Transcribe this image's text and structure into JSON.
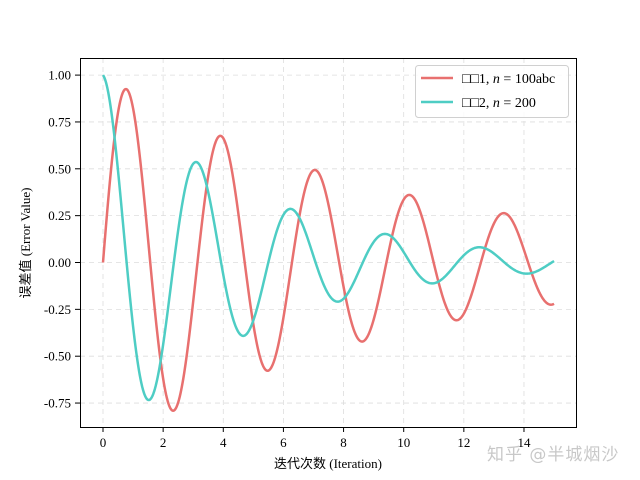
{
  "chart_data": {
    "type": "line",
    "title": "",
    "xlabel": "迭代次数 (Iteration)",
    "ylabel": "误差值 (Error Value)",
    "xlim": [
      -0.75,
      15.75
    ],
    "ylim": [
      -0.88,
      1.1
    ],
    "x_ticks": [
      0,
      2,
      4,
      6,
      8,
      10,
      12,
      14
    ],
    "x_tick_labels": [
      "0",
      "2",
      "4",
      "6",
      "8",
      "10",
      "12",
      "14"
    ],
    "y_ticks": [
      1.0,
      0.75,
      0.5,
      0.25,
      0.0,
      -0.25,
      -0.5,
      -0.75
    ],
    "y_tick_labels": [
      "1.00",
      "0.75",
      "0.50",
      "0.25",
      "0.00",
      "-0.25",
      "-0.50",
      "-0.75"
    ],
    "grid": true,
    "legend_position": "upper right",
    "series": [
      {
        "name": "□□1, n = 100abc",
        "color": "#e8706f",
        "formula": "exp(-0.1x)*sin(2x)",
        "x": [
          0,
          0.75,
          1.5,
          2.35,
          3.15,
          3.95,
          4.7,
          5.5,
          6.3,
          7.05,
          7.85,
          8.65,
          9.4,
          10.2,
          11.0,
          11.8,
          12.55,
          13.35,
          14.1,
          15.0
        ],
        "values": [
          0.0,
          0.92,
          0.12,
          -0.79,
          -0.01,
          0.67,
          0.0,
          -0.57,
          0.02,
          0.49,
          0.0,
          -0.42,
          0.0,
          0.36,
          0.0,
          -0.3,
          0.0,
          0.26,
          0.0,
          -0.22
        ]
      },
      {
        "name": "□□2, n = 200",
        "color": "#4ecdc4",
        "formula": "exp(-0.2x)*cos(2x)",
        "x": [
          0,
          0.8,
          1.55,
          2.35,
          3.1,
          3.95,
          4.7,
          5.5,
          6.28,
          7.05,
          7.85,
          8.65,
          9.42,
          10.2,
          11.0,
          11.8,
          12.57,
          13.35,
          14.1,
          15.0
        ],
        "values": [
          1.0,
          -0.03,
          -0.73,
          0.0,
          0.54,
          0.0,
          -0.39,
          0.0,
          0.28,
          0.0,
          -0.21,
          0.0,
          0.15,
          0.0,
          -0.11,
          0.0,
          0.08,
          0.0,
          -0.06,
          0.01
        ]
      }
    ]
  },
  "legend": {
    "items": [
      {
        "label_prefix": "□□1, ",
        "label_var": "n",
        "label_suffix": " = 100abc",
        "color": "#e8706f"
      },
      {
        "label_prefix": "□□2, ",
        "label_var": "n",
        "label_suffix": " = 200",
        "color": "#4ecdc4"
      }
    ]
  },
  "watermark": "知乎 @半城烟沙"
}
